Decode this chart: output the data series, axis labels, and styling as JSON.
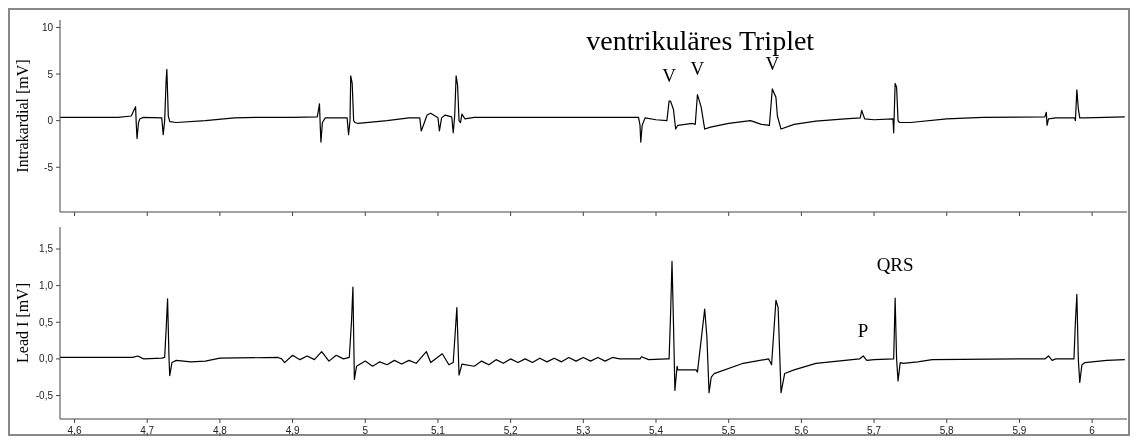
{
  "chart_data": [
    {
      "type": "line",
      "ylabel": "Intrakardial [mV]",
      "xlim": [
        4.58,
        6.048
      ],
      "ylim": [
        -9.8,
        10.8
      ],
      "yticks": [
        10,
        5,
        0,
        -5
      ],
      "tick_labels": "y",
      "grid": false,
      "xticks": [
        {
          "value": 4.6,
          "label": null
        },
        {
          "value": 4.7,
          "label": null
        },
        {
          "value": 4.8,
          "label": null
        },
        {
          "value": 4.9,
          "label": null
        },
        {
          "value": 5,
          "label": null
        },
        {
          "value": 5.1,
          "label": null
        },
        {
          "value": 5.2,
          "label": null
        },
        {
          "value": 5.3,
          "label": null
        },
        {
          "value": 5.4,
          "label": null
        },
        {
          "value": 5.5,
          "label": null
        },
        {
          "value": 5.6,
          "label": null
        },
        {
          "value": 5.7,
          "label": null
        },
        {
          "value": 5.8,
          "label": null
        },
        {
          "value": 5.9,
          "label": null
        },
        {
          "value": 6,
          "label": null
        }
      ],
      "annotations": [
        "ventrikuläres Triplet",
        {
          "text": "V",
          "x": 5.418,
          "y": 2.1
        },
        {
          "text": "V",
          "x": 5.457,
          "y": 2.8
        },
        {
          "text": "V",
          "x": 5.56,
          "y": 3.4
        }
      ],
      "series": [
        {
          "color": "#000000",
          "x": [
            4.58,
            4.62,
            4.66,
            4.678,
            4.684,
            4.685,
            4.686,
            4.688,
            4.69,
            4.695,
            4.72,
            4.722,
            4.724,
            4.726,
            4.727,
            4.729,
            4.731,
            4.74,
            4.78,
            4.82,
            4.85,
            4.9,
            4.934,
            4.937,
            4.938,
            4.939,
            4.941,
            4.945,
            4.975,
            4.977,
            4.979,
            4.98,
            4.982,
            4.984,
            4.986,
            4.99,
            5.03,
            5.06,
            5.075,
            5.077,
            5.08,
            5.085,
            5.09,
            5.1,
            5.102,
            5.105,
            5.11,
            5.119,
            5.121,
            5.123,
            5.125,
            5.127,
            5.129,
            5.131,
            5.133,
            5.137,
            5.15,
            5.25,
            5.376,
            5.378,
            5.379,
            5.381,
            5.385,
            5.4,
            5.415,
            5.418,
            5.42,
            5.424,
            5.427,
            5.43,
            5.45,
            5.454,
            5.457,
            5.462,
            5.467,
            5.475,
            5.5,
            5.53,
            5.545,
            5.556,
            5.56,
            5.565,
            5.567,
            5.572,
            5.59,
            5.62,
            5.66,
            5.681,
            5.683,
            5.687,
            5.7,
            5.726,
            5.727,
            5.729,
            5.731,
            5.733,
            5.735,
            5.75,
            5.8,
            5.85,
            5.935,
            5.937,
            5.938,
            5.94,
            5.95,
            5.976,
            5.977,
            5.979,
            5.981,
            5.983,
            5.99,
            6.045
          ],
          "values": [
            0.35,
            0.35,
            0.35,
            0.5,
            1.5,
            -0.5,
            -1.9,
            -0.2,
            0.2,
            0.35,
            0.3,
            -1.5,
            0.0,
            4.3,
            5.5,
            0.5,
            -0.1,
            -0.2,
            0.0,
            0.3,
            0.35,
            0.35,
            0.4,
            1.8,
            -0.5,
            -2.3,
            -0.2,
            0.3,
            0.3,
            -1.5,
            0.0,
            4.8,
            4.0,
            0.0,
            -0.2,
            -0.3,
            0.0,
            0.3,
            0.3,
            -1.1,
            -0.5,
            0.6,
            0.8,
            0.3,
            -1.1,
            0.3,
            0.6,
            0.4,
            -1.3,
            0.5,
            4.8,
            3.8,
            0.0,
            -0.2,
            0.7,
            0.2,
            0.35,
            0.35,
            0.35,
            -0.5,
            -2.3,
            -0.5,
            0.3,
            0.1,
            0.0,
            2.1,
            2.1,
            1.2,
            -0.9,
            -0.5,
            -0.3,
            -0.4,
            2.8,
            1.5,
            -0.9,
            -0.7,
            -0.3,
            0.0,
            -0.4,
            -0.5,
            3.4,
            2.5,
            0.5,
            -0.9,
            -0.4,
            -0.05,
            0.2,
            0.3,
            1.1,
            0.2,
            0.1,
            0.2,
            -1.3,
            4.0,
            3.6,
            0.0,
            -0.2,
            -0.2,
            0.2,
            0.35,
            0.4,
            0.9,
            -0.5,
            0.2,
            0.3,
            0.3,
            0.0,
            3.3,
            1.3,
            0.3,
            0.3,
            0.4
          ]
        }
      ]
    },
    {
      "type": "line",
      "ylabel": "Lead I [mV]",
      "xlim": [
        4.58,
        6.048
      ],
      "ylim": [
        -0.82,
        1.8
      ],
      "grid": false,
      "yticks": [
        {
          "value": 1.5,
          "label": "1,5"
        },
        {
          "value": 1,
          "label": "1,0"
        },
        {
          "value": 0.5,
          "label": "0,5"
        },
        {
          "value": 0,
          "label": "0,0"
        },
        {
          "value": -0.5,
          "label": "-0,5"
        }
      ],
      "xticks": [
        {
          "value": 4.6,
          "label": "4,6"
        },
        {
          "value": 4.7,
          "label": "4,7"
        },
        {
          "value": 4.8,
          "label": "4,8"
        },
        {
          "value": 4.9,
          "label": "4,9"
        },
        5,
        {
          "value": 5.1,
          "label": "5,1"
        },
        {
          "value": 5.2,
          "label": "5,2"
        },
        {
          "value": 5.3,
          "label": "5,3"
        },
        {
          "value": 5.4,
          "label": "5,4"
        },
        {
          "value": 5.5,
          "label": "5,5"
        },
        {
          "value": 5.6,
          "label": "5,6"
        },
        {
          "value": 5.7,
          "label": "5,7"
        },
        {
          "value": 5.8,
          "label": "5,8"
        },
        {
          "value": 5.9,
          "label": "5,9"
        },
        6
      ],
      "annotations": [
        {
          "text": "QRS",
          "x": 5.729,
          "y": 0.83
        },
        {
          "text": "P",
          "x": 5.685,
          "y": 0.04
        }
      ],
      "series": [
        {
          "color": "#000000",
          "x": [
            4.58,
            4.68,
            4.687,
            4.695,
            4.72,
            4.724,
            4.726,
            4.728,
            4.73,
            4.731,
            4.734,
            4.74,
            4.76,
            4.78,
            4.8,
            4.88,
            4.885,
            4.889,
            4.9,
            4.91,
            4.92,
            4.93,
            4.94,
            4.95,
            4.96,
            4.97,
            4.978,
            4.981,
            4.983,
            4.985,
            4.988,
            5.0,
            5.01,
            5.02,
            5.03,
            5.04,
            5.05,
            5.06,
            5.07,
            5.084,
            5.09,
            5.106,
            5.115,
            5.121,
            5.124,
            5.126,
            5.129,
            5.133,
            5.15,
            5.16,
            5.17,
            5.18,
            5.19,
            5.2,
            5.21,
            5.22,
            5.23,
            5.24,
            5.25,
            5.26,
            5.27,
            5.28,
            5.29,
            5.3,
            5.31,
            5.32,
            5.33,
            5.34,
            5.35,
            5.378,
            5.38,
            5.39,
            5.415,
            5.418,
            5.42,
            5.422,
            5.424,
            5.426,
            5.429,
            5.43,
            5.455,
            5.457,
            5.467,
            5.47,
            5.473,
            5.476,
            5.48,
            5.52,
            5.555,
            5.559,
            5.565,
            5.568,
            5.572,
            5.577,
            5.59,
            5.62,
            5.66,
            5.68,
            5.685,
            5.69,
            5.7,
            5.727,
            5.729,
            5.731,
            5.733,
            5.736,
            5.74,
            5.76,
            5.78,
            5.9,
            5.935,
            5.94,
            5.945,
            5.95,
            5.975,
            5.977,
            5.979,
            5.981,
            5.983,
            5.986,
            5.99,
            6.0,
            6.02,
            6.045
          ],
          "values": [
            0.02,
            0.02,
            0.04,
            0.0,
            0.01,
            0.02,
            0.4,
            0.82,
            0.0,
            -0.23,
            -0.05,
            -0.02,
            -0.04,
            -0.03,
            0.01,
            0.02,
            0.0,
            -0.05,
            0.05,
            -0.01,
            0.04,
            -0.01,
            0.1,
            -0.03,
            0.05,
            0.0,
            0.02,
            0.5,
            0.98,
            -0.28,
            -0.1,
            -0.03,
            -0.1,
            -0.04,
            -0.08,
            -0.02,
            -0.07,
            -0.02,
            -0.06,
            0.1,
            -0.05,
            0.07,
            -0.08,
            -0.05,
            0.4,
            0.7,
            -0.22,
            -0.07,
            -0.1,
            -0.03,
            -0.08,
            -0.01,
            -0.06,
            0.0,
            -0.05,
            0.0,
            -0.05,
            0.01,
            -0.04,
            0.01,
            -0.04,
            0.02,
            -0.03,
            0.02,
            -0.03,
            0.02,
            -0.03,
            0.02,
            0.0,
            0.0,
            0.03,
            -0.01,
            0.0,
            0.0,
            0.6,
            1.33,
            0.5,
            -0.43,
            -0.1,
            -0.15,
            -0.15,
            -0.18,
            0.68,
            0.3,
            -0.46,
            -0.25,
            -0.2,
            -0.06,
            0.0,
            -0.08,
            0.8,
            0.7,
            -0.46,
            -0.2,
            -0.15,
            -0.06,
            -0.02,
            0.0,
            0.04,
            -0.02,
            -0.01,
            0.0,
            0.83,
            0.0,
            -0.3,
            -0.05,
            -0.06,
            -0.04,
            -0.01,
            0.0,
            0.0,
            0.04,
            -0.02,
            0.0,
            0.0,
            0.5,
            0.88,
            0.0,
            -0.32,
            -0.08,
            -0.05,
            -0.04,
            -0.02,
            -0.01
          ]
        }
      ]
    }
  ]
}
